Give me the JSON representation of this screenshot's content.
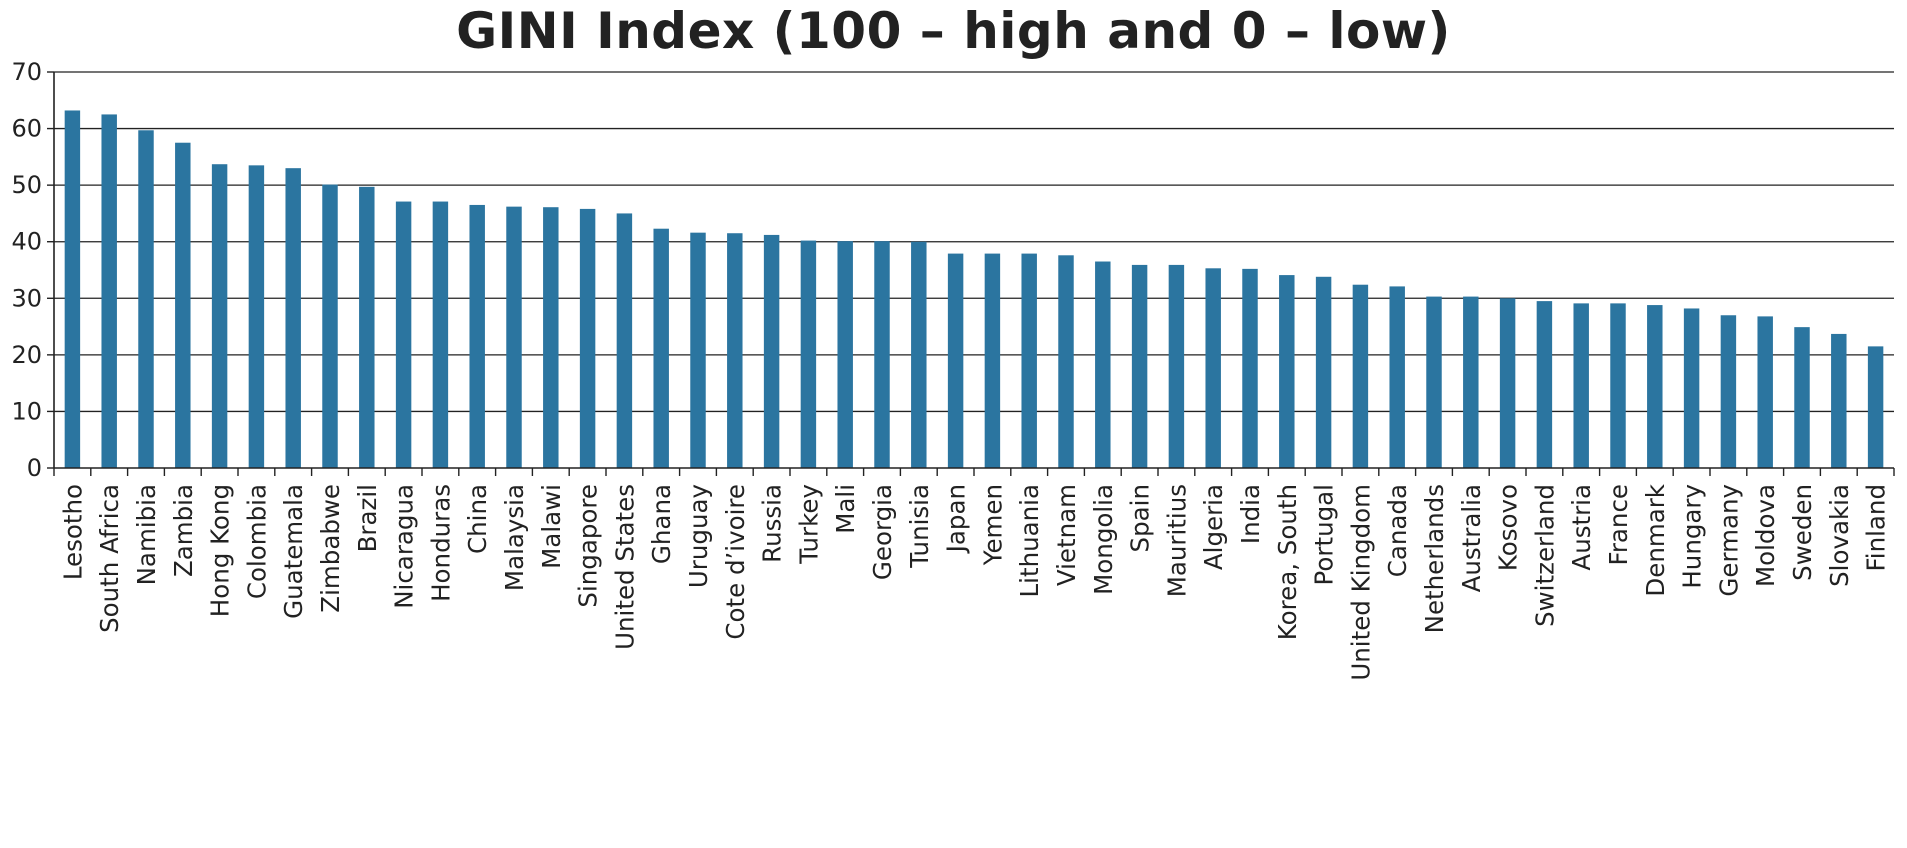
{
  "chart_data": {
    "type": "bar",
    "title": "GINI Index (100 – high and 0 – low)",
    "xlabel": "",
    "ylabel": "",
    "ylim": [
      0,
      70
    ],
    "yticks": [
      0,
      10,
      20,
      30,
      40,
      50,
      60,
      70
    ],
    "grid": true,
    "legend": "none",
    "bar_color": "#2b75a0",
    "categories": [
      "Lesotho",
      "South Africa",
      "Namibia",
      "Zambia",
      "Hong Kong",
      "Colombia",
      "Guatemala",
      "Zimbabwe",
      "Brazil",
      "Nicaragua",
      "Honduras",
      "China",
      "Malaysia",
      "Malawi",
      "Singapore",
      "United States",
      "Ghana",
      "Uruguay",
      "Cote d’ivoire",
      "Russia",
      "Turkey",
      "Mali",
      "Georgia",
      "Tunisia",
      "Japan",
      "Yemen",
      "Lithuania",
      "Vietnam",
      "Mongolia",
      "Spain",
      "Mauritius",
      "Algeria",
      "India",
      "Korea, South",
      "Portugal",
      "United Kingdom",
      "Canada",
      "Netherlands",
      "Australia",
      "Kosovo",
      "Switzerland",
      "Austria",
      "France",
      "Denmark",
      "Hungary",
      "Germany",
      "Moldova",
      "Sweden",
      "Slovakia",
      "Finland"
    ],
    "values": [
      63.2,
      62.5,
      59.7,
      57.5,
      53.7,
      53.5,
      53.0,
      50.1,
      49.7,
      47.1,
      47.1,
      46.5,
      46.2,
      46.1,
      45.8,
      45.0,
      42.3,
      41.6,
      41.5,
      41.2,
      40.2,
      40.1,
      40.1,
      40.0,
      37.9,
      37.9,
      37.9,
      37.6,
      36.5,
      35.9,
      35.9,
      35.3,
      35.2,
      34.1,
      33.8,
      32.4,
      32.1,
      30.3,
      30.3,
      30.0,
      29.5,
      29.1,
      29.1,
      28.8,
      28.2,
      27.0,
      26.8,
      24.9,
      23.7,
      21.5
    ]
  }
}
